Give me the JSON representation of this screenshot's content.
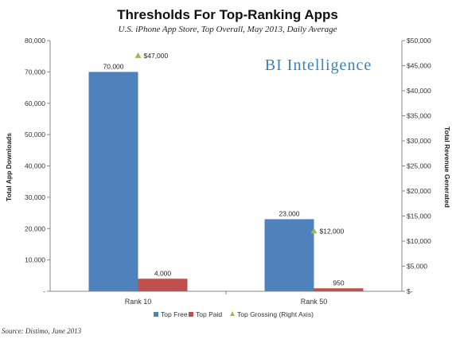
{
  "chart_data": {
    "type": "bar",
    "title": "Thresholds For Top-Ranking Apps",
    "subtitle": "U.S. iPhone App Store, Top Overall, May 2013, Daily Average",
    "categories": [
      "Rank 10",
      "Rank 50"
    ],
    "series": [
      {
        "name": "Top Free",
        "axis": "left",
        "type": "bar",
        "color": "#4f81bd",
        "values": [
          70000,
          23000
        ],
        "labels": [
          "70,000",
          "23,000"
        ]
      },
      {
        "name": "Top Paid",
        "axis": "left",
        "type": "bar",
        "color": "#c0504d",
        "values": [
          4000,
          950
        ],
        "labels": [
          "4,000",
          "950"
        ]
      },
      {
        "name": "Top Grossing (Right Axis)",
        "axis": "right",
        "type": "marker",
        "color": "#9bbb59",
        "values": [
          47000,
          12000
        ],
        "labels": [
          "$47,000",
          "$12,000"
        ]
      }
    ],
    "ylabel": "Total App Downloads",
    "y2label": "Total Revenue Generated",
    "ylim": [
      0,
      80000
    ],
    "y2lim": [
      0,
      50000
    ],
    "yticks": [
      "-",
      "10,000",
      "20,000",
      "30,000",
      "40,000",
      "50,000",
      "60,000",
      "70,000",
      "80,000"
    ],
    "y2ticks": [
      "$-",
      "$5,000",
      "$10,000",
      "$15,000",
      "$20,000",
      "$25,000",
      "$30,000",
      "$35,000",
      "$40,000",
      "$45,000",
      "$50,000"
    ],
    "grid": false,
    "legend": "bottom",
    "watermark": "BI Intelligence",
    "source": "Source: Distimo, June 2013"
  }
}
